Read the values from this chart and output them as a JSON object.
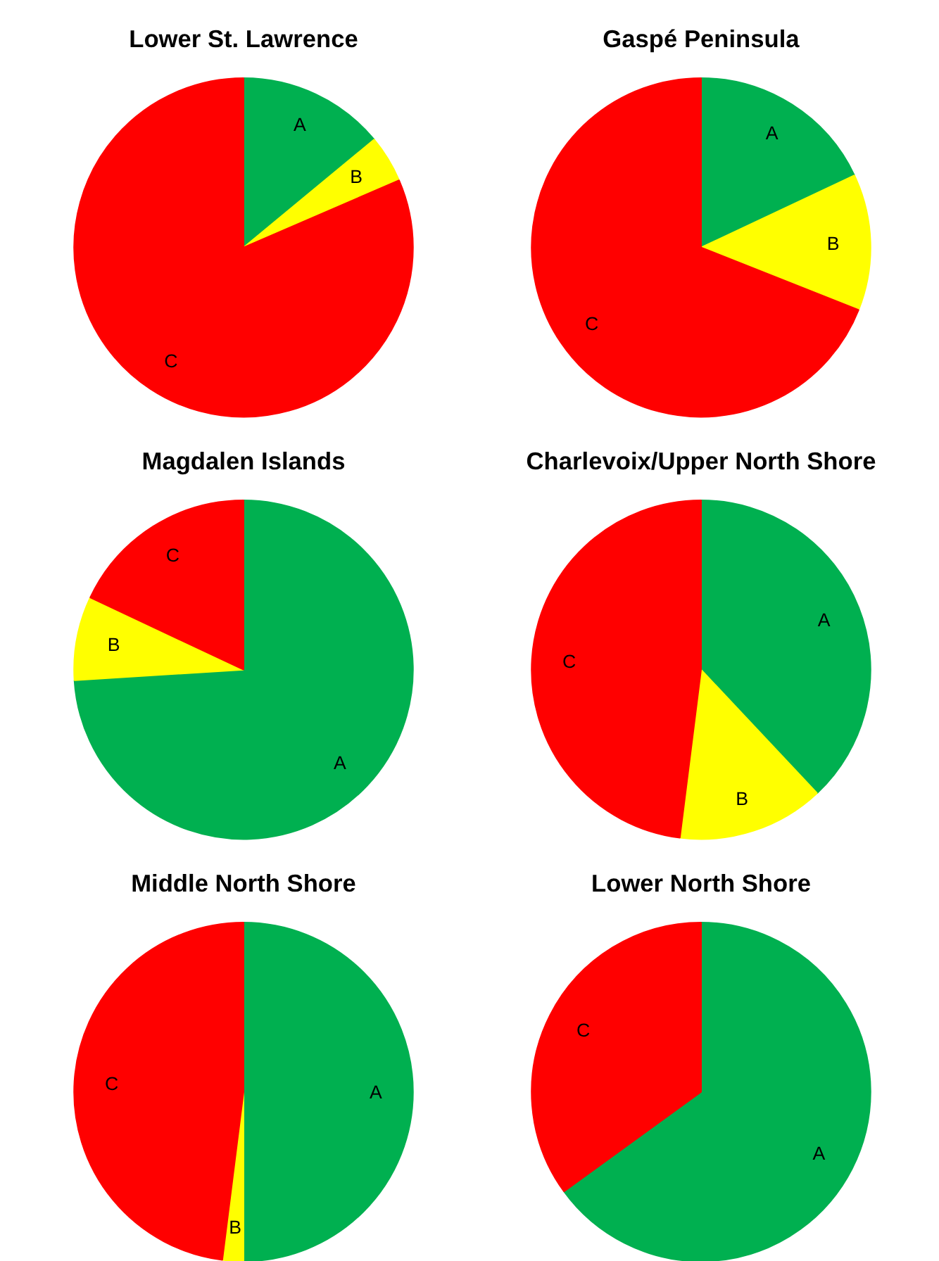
{
  "chart_data": [
    {
      "type": "pie",
      "title": "Lower St. Lawrence",
      "categories": [
        "A",
        "B",
        "C"
      ],
      "values": [
        14,
        4.5,
        81.5
      ],
      "colors": [
        "#00b050",
        "#ffff00",
        "#ff0000"
      ]
    },
    {
      "type": "pie",
      "title": "Gaspé Peninsula",
      "categories": [
        "A",
        "B",
        "C"
      ],
      "values": [
        18,
        13,
        69
      ],
      "colors": [
        "#00b050",
        "#ffff00",
        "#ff0000"
      ]
    },
    {
      "type": "pie",
      "title": "Magdalen Islands",
      "categories": [
        "A",
        "B",
        "C"
      ],
      "values": [
        74,
        8,
        18
      ],
      "colors": [
        "#00b050",
        "#ffff00",
        "#ff0000"
      ]
    },
    {
      "type": "pie",
      "title": "Charlevoix/Upper North Shore",
      "categories": [
        "A",
        "B",
        "C"
      ],
      "values": [
        38,
        14,
        48
      ],
      "colors": [
        "#00b050",
        "#ffff00",
        "#ff0000"
      ]
    },
    {
      "type": "pie",
      "title": "Middle North Shore",
      "categories": [
        "A",
        "B",
        "C"
      ],
      "values": [
        50,
        2,
        48
      ],
      "colors": [
        "#00b050",
        "#ffff00",
        "#ff0000"
      ]
    },
    {
      "type": "pie",
      "title": "Lower North Shore",
      "categories": [
        "A",
        "C"
      ],
      "values": [
        65,
        35
      ],
      "colors": [
        "#00b050",
        "#ff0000"
      ]
    }
  ]
}
